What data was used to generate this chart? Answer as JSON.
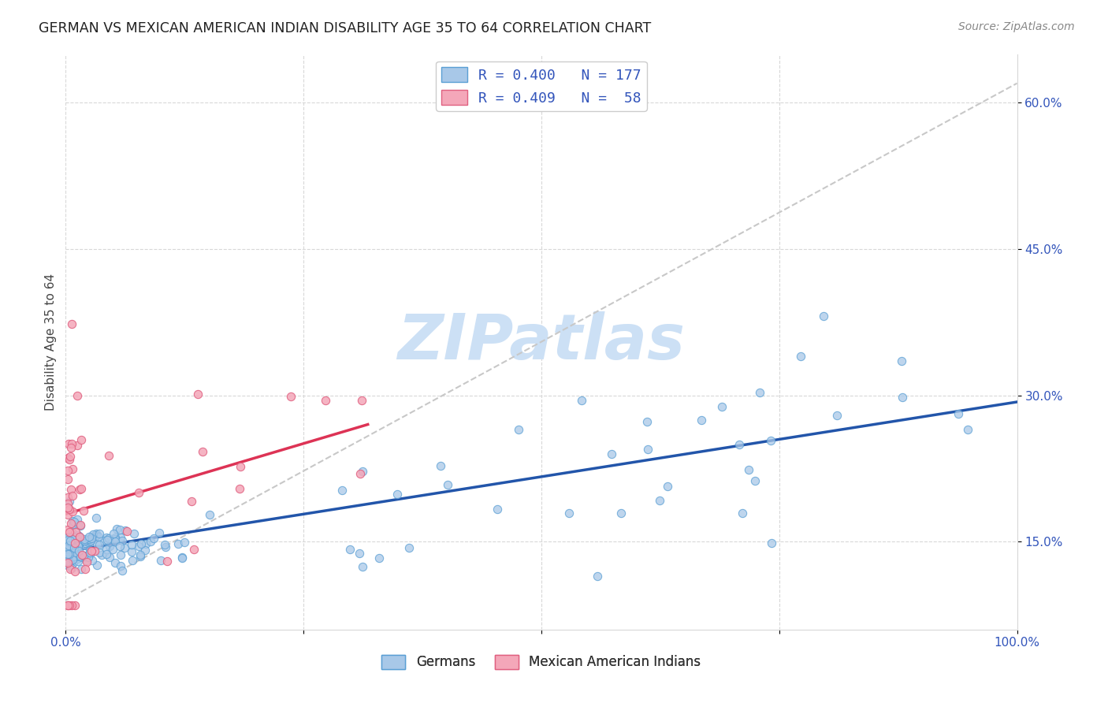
{
  "title": "GERMAN VS MEXICAN AMERICAN INDIAN DISABILITY AGE 35 TO 64 CORRELATION CHART",
  "source": "Source: ZipAtlas.com",
  "ylabel": "Disability Age 35 to 64",
  "xlim": [
    0,
    1.0
  ],
  "ylim": [
    0.06,
    0.65
  ],
  "ytick_vals": [
    0.15,
    0.3,
    0.45,
    0.6
  ],
  "yticklabels": [
    "15.0%",
    "30.0%",
    "45.0%",
    "60.0%"
  ],
  "xtick_vals": [
    0.0,
    0.25,
    0.5,
    0.75,
    1.0
  ],
  "xticklabels": [
    "0.0%",
    "",
    "",
    "",
    "100.0%"
  ],
  "german_color": "#a8c8e8",
  "german_edge_color": "#5a9fd4",
  "mexican_color": "#f4a7b9",
  "mexican_edge_color": "#e06080",
  "german_line_color": "#2255aa",
  "mexican_line_color": "#dd3355",
  "diag_line_color": "#c8c8c8",
  "grid_color": "#d8d8d8",
  "background_color": "#ffffff",
  "watermark_color": "#cce0f5",
  "legend_label1": "R = 0.400   N = 177",
  "legend_label2": "R = 0.409   N =  58",
  "bot_label1": "Germans",
  "bot_label2": "Mexican American Indians",
  "german_seed": 42,
  "mexican_seed": 77
}
